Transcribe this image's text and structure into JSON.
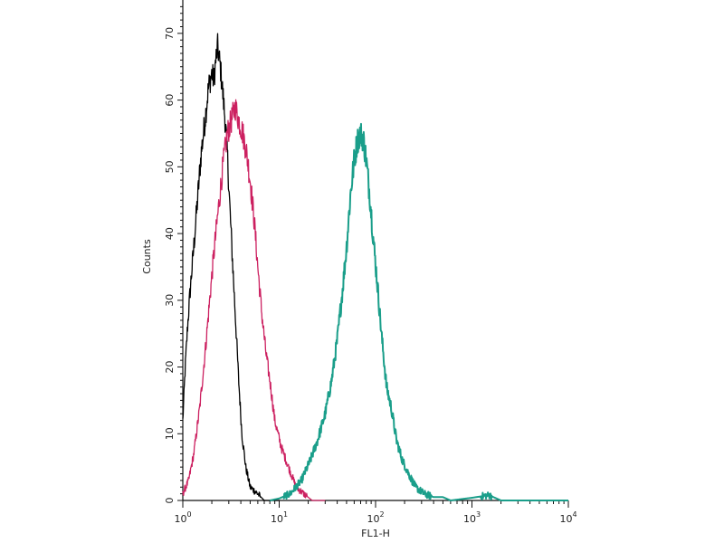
{
  "chart_data": {
    "type": "line",
    "xlabel": "FL1-H",
    "ylabel": "Counts",
    "x_scale": "log",
    "xlim": [
      1,
      10000
    ],
    "ylim": [
      0,
      75
    ],
    "x_ticks": [
      {
        "base": "10",
        "exp": "0",
        "value": 1
      },
      {
        "base": "10",
        "exp": "1",
        "value": 10
      },
      {
        "base": "10",
        "exp": "2",
        "value": 100
      },
      {
        "base": "10",
        "exp": "3",
        "value": 1000
      },
      {
        "base": "10",
        "exp": "4",
        "value": 10000
      }
    ],
    "y_ticks": [
      "0",
      "10",
      "20",
      "30",
      "40",
      "50",
      "60",
      "70"
    ],
    "series": [
      {
        "color": "#000000",
        "points": [
          [
            1.0,
            12
          ],
          [
            1.06,
            20
          ],
          [
            1.12,
            26
          ],
          [
            1.2,
            32
          ],
          [
            1.3,
            38
          ],
          [
            1.42,
            45
          ],
          [
            1.55,
            52
          ],
          [
            1.7,
            57
          ],
          [
            1.85,
            62
          ],
          [
            2.0,
            64
          ],
          [
            2.1,
            63
          ],
          [
            2.2,
            66
          ],
          [
            2.3,
            68
          ],
          [
            2.45,
            65
          ],
          [
            2.6,
            61
          ],
          [
            2.75,
            57
          ],
          [
            2.9,
            52
          ],
          [
            3.05,
            45
          ],
          [
            3.25,
            37
          ],
          [
            3.5,
            28
          ],
          [
            3.8,
            18
          ],
          [
            4.1,
            10
          ],
          [
            4.5,
            5
          ],
          [
            5.0,
            2
          ],
          [
            6.0,
            1
          ],
          [
            7.0,
            0
          ],
          [
            8.0,
            0
          ],
          [
            10,
            0
          ]
        ]
      },
      {
        "color": "#cc2060",
        "points": [
          [
            1.0,
            1
          ],
          [
            1.15,
            3
          ],
          [
            1.3,
            7
          ],
          [
            1.5,
            14
          ],
          [
            1.7,
            22
          ],
          [
            1.9,
            30
          ],
          [
            2.1,
            37
          ],
          [
            2.35,
            44
          ],
          [
            2.6,
            50
          ],
          [
            2.9,
            55
          ],
          [
            3.2,
            57
          ],
          [
            3.5,
            59
          ],
          [
            3.8,
            57
          ],
          [
            4.2,
            55
          ],
          [
            4.6,
            52
          ],
          [
            5.0,
            48
          ],
          [
            5.5,
            42
          ],
          [
            6.0,
            35
          ],
          [
            6.6,
            28
          ],
          [
            7.3,
            22
          ],
          [
            8.0,
            18
          ],
          [
            9.0,
            12
          ],
          [
            10.5,
            8
          ],
          [
            12.5,
            5
          ],
          [
            15,
            2
          ],
          [
            18,
            1
          ],
          [
            22,
            0
          ],
          [
            30,
            0
          ]
        ]
      },
      {
        "color": "#1a9e8a",
        "points": [
          [
            8,
            0
          ],
          [
            10,
            0.3
          ],
          [
            13,
            1
          ],
          [
            17,
            3
          ],
          [
            21,
            6
          ],
          [
            25,
            9
          ],
          [
            30,
            13
          ],
          [
            35,
            18
          ],
          [
            40,
            24
          ],
          [
            45,
            31
          ],
          [
            50,
            38
          ],
          [
            55,
            46
          ],
          [
            60,
            51
          ],
          [
            65,
            54
          ],
          [
            70,
            55
          ],
          [
            75,
            54
          ],
          [
            80,
            51
          ],
          [
            88,
            45
          ],
          [
            95,
            39
          ],
          [
            105,
            32
          ],
          [
            115,
            25
          ],
          [
            130,
            17
          ],
          [
            145,
            14
          ],
          [
            165,
            9
          ],
          [
            190,
            6
          ],
          [
            220,
            4
          ],
          [
            260,
            2
          ],
          [
            320,
            1
          ],
          [
            400,
            0.5
          ],
          [
            500,
            0.5
          ],
          [
            600,
            0
          ],
          [
            1000,
            0.4
          ],
          [
            1500,
            0.8
          ],
          [
            2000,
            0
          ],
          [
            10000,
            0
          ]
        ]
      }
    ]
  }
}
